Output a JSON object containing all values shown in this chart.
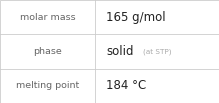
{
  "rows": [
    {
      "label": "molar mass",
      "value": "165 g/mol",
      "suffix": null
    },
    {
      "label": "phase",
      "value": "solid",
      "suffix": "(at STP)"
    },
    {
      "label": "melting point",
      "value": "184 °C",
      "suffix": null
    }
  ],
  "background_color": "#ffffff",
  "border_color": "#cccccc",
  "label_color": "#666666",
  "value_color": "#222222",
  "suffix_color": "#aaaaaa",
  "label_fontsize": 6.8,
  "value_fontsize": 8.5,
  "suffix_fontsize": 5.2,
  "col_split": 0.435,
  "figsize": [
    2.19,
    1.03
  ],
  "dpi": 100
}
